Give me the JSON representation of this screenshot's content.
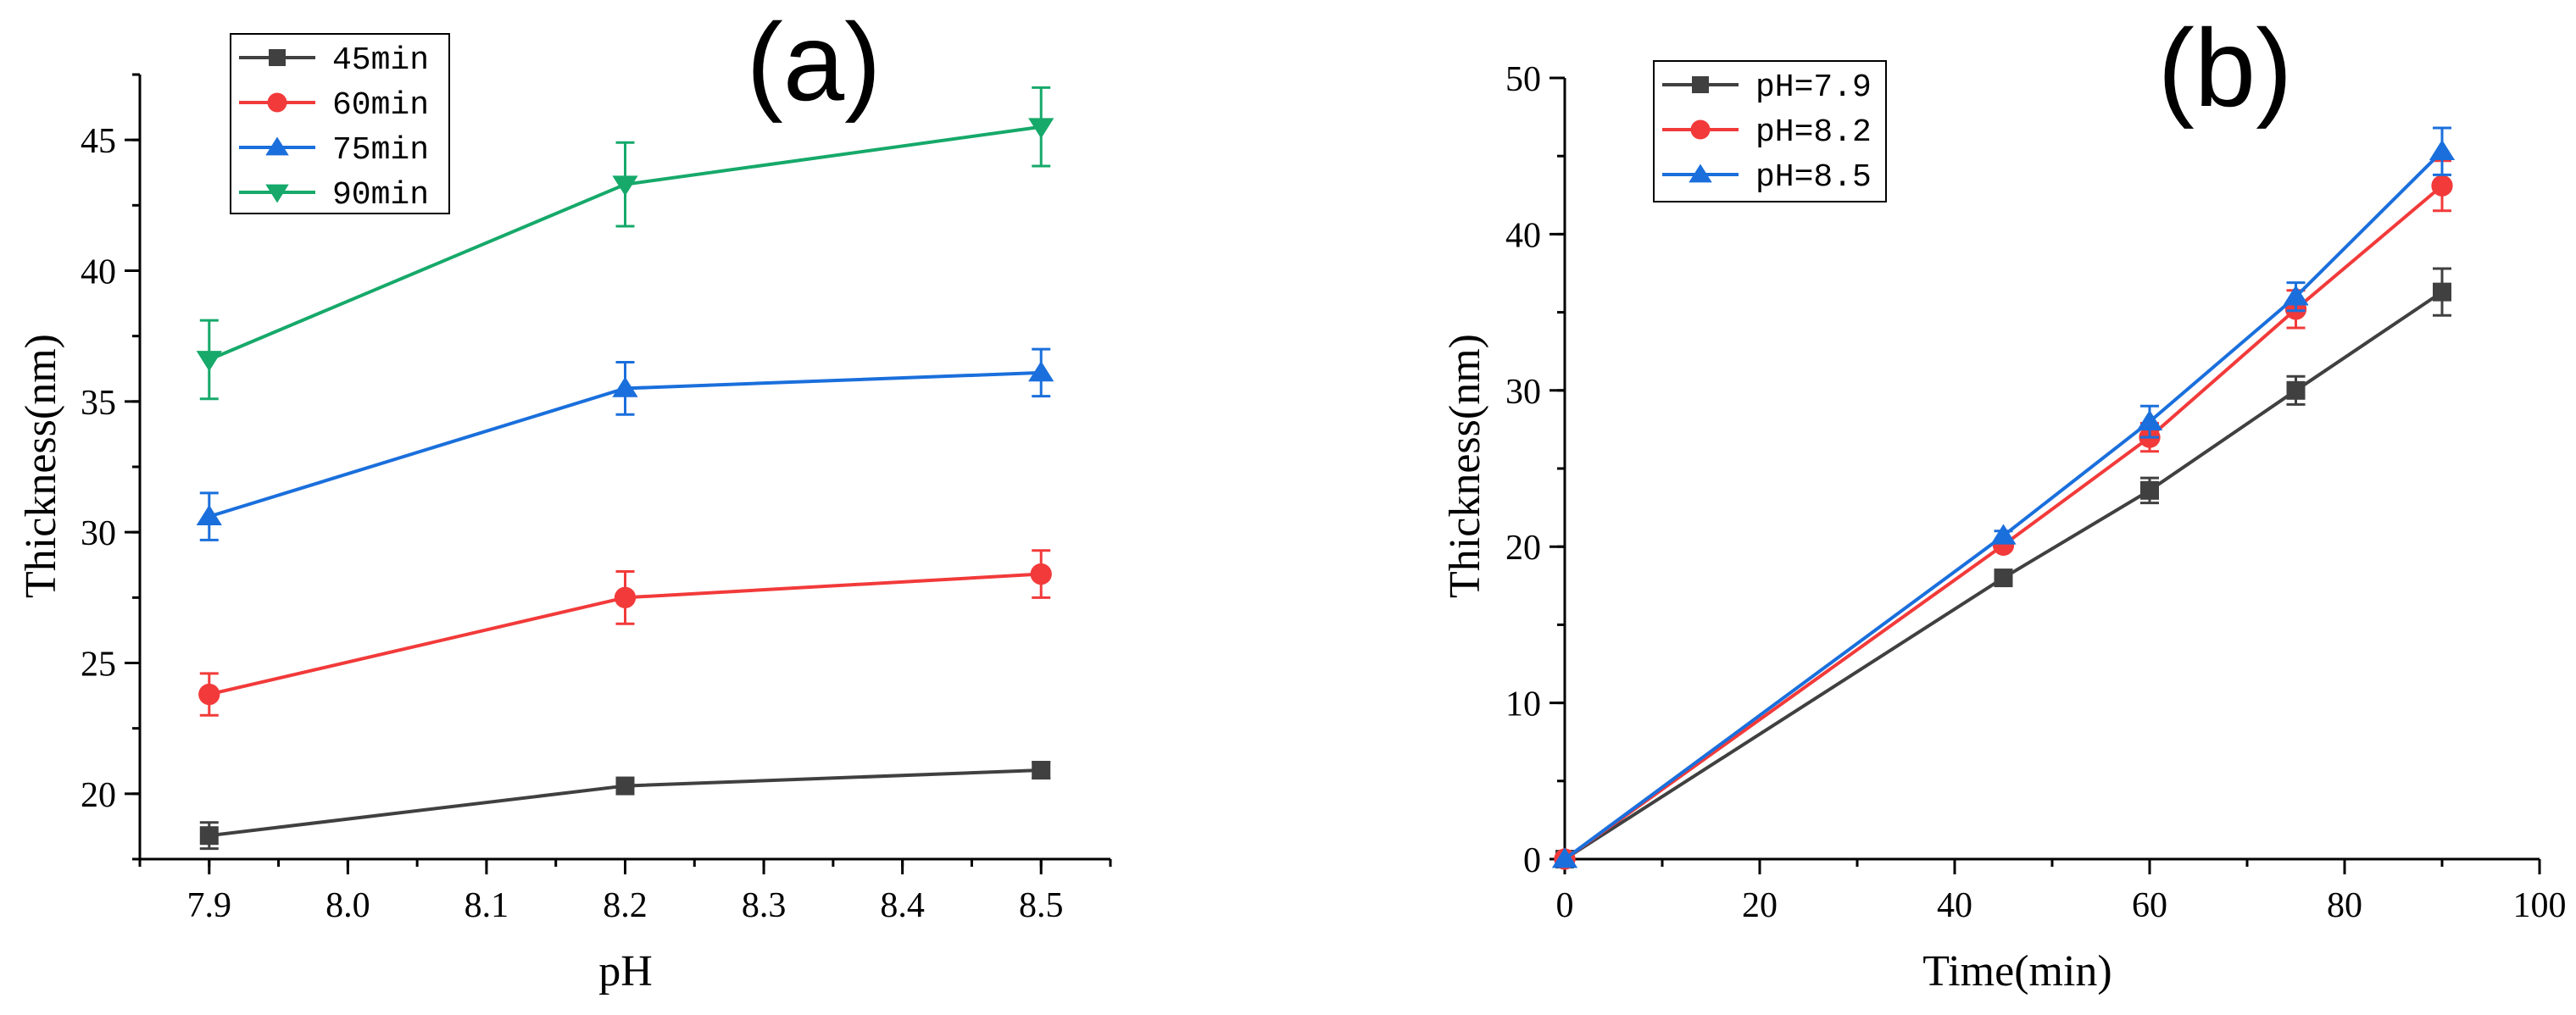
{
  "chart_data": [
    {
      "type": "line",
      "panel_label": "(a)",
      "xlabel": "pH",
      "ylabel": "Thickness(nm)",
      "xlim": [
        7.85,
        8.55
      ],
      "ylim": [
        17.5,
        47.5
      ],
      "xticks": [
        7.9,
        8.0,
        8.1,
        8.2,
        8.3,
        8.4,
        8.5
      ],
      "xtick_labels": [
        "7.9",
        "8.0",
        "8.1",
        "8.2",
        "8.3",
        "8.4",
        "8.5"
      ],
      "yticks": [
        20,
        25,
        30,
        35,
        40,
        45
      ],
      "ytick_labels": [
        "20",
        "25",
        "30",
        "35",
        "40",
        "45"
      ],
      "legend_position": "top-left",
      "series": [
        {
          "name": "45min",
          "color": "#404040",
          "marker": "square",
          "x": [
            7.9,
            8.2,
            8.5
          ],
          "values": [
            18.4,
            20.3,
            20.9
          ],
          "errors": [
            0.5,
            0.3,
            0.3
          ]
        },
        {
          "name": "60min",
          "color": "#f23a3a",
          "marker": "circle",
          "x": [
            7.9,
            8.2,
            8.5
          ],
          "values": [
            23.8,
            27.5,
            28.4
          ],
          "errors": [
            0.8,
            1.0,
            0.9
          ]
        },
        {
          "name": "75min",
          "color": "#1a6fdc",
          "marker": "triangle-up",
          "x": [
            7.9,
            8.2,
            8.5
          ],
          "values": [
            30.6,
            35.5,
            36.1
          ],
          "errors": [
            0.9,
            1.0,
            0.9
          ]
        },
        {
          "name": "90min",
          "color": "#16a96a",
          "marker": "triangle-down",
          "x": [
            7.9,
            8.2,
            8.5
          ],
          "values": [
            36.6,
            43.3,
            45.5
          ],
          "errors": [
            1.5,
            1.6,
            1.5
          ]
        }
      ]
    },
    {
      "type": "line",
      "panel_label": "(b)",
      "xlabel": "Time(min)",
      "ylabel": "Thickness(nm)",
      "xlim": [
        0,
        100
      ],
      "ylim": [
        0,
        50
      ],
      "xticks": [
        0,
        20,
        40,
        60,
        80,
        100
      ],
      "xtick_labels": [
        "0",
        "20",
        "40",
        "60",
        "80",
        "100"
      ],
      "yticks": [
        0,
        10,
        20,
        30,
        40,
        50
      ],
      "ytick_labels": [
        "0",
        "10",
        "20",
        "30",
        "40",
        "50"
      ],
      "legend_position": "top-left",
      "series": [
        {
          "name": "pH=7.9",
          "color": "#404040",
          "marker": "square",
          "x": [
            0,
            45,
            60,
            75,
            90
          ],
          "values": [
            0,
            18.0,
            23.6,
            30.0,
            36.3
          ],
          "errors": [
            0,
            0.3,
            0.8,
            0.9,
            1.5
          ]
        },
        {
          "name": "pH=8.2",
          "color": "#f23a3a",
          "marker": "circle",
          "x": [
            0,
            45,
            60,
            75,
            90
          ],
          "values": [
            0,
            20.1,
            27.0,
            35.2,
            43.1
          ],
          "errors": [
            0,
            0.3,
            0.9,
            1.2,
            1.6
          ]
        },
        {
          "name": "pH=8.5",
          "color": "#1a6fdc",
          "marker": "triangle-up",
          "x": [
            0,
            45,
            60,
            75,
            90
          ],
          "values": [
            0,
            20.7,
            28.0,
            36.0,
            45.3
          ],
          "errors": [
            0,
            0.3,
            1.0,
            0.9,
            1.5
          ]
        }
      ]
    }
  ]
}
